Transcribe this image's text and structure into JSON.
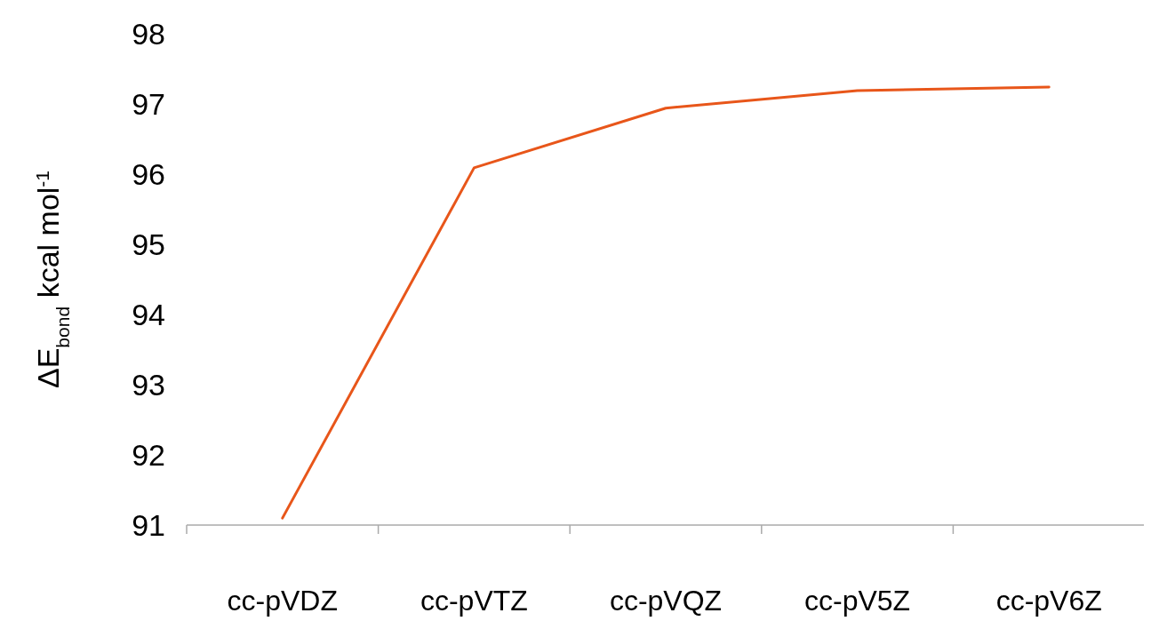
{
  "chart_data": {
    "type": "line",
    "ylabel": "ΔE$_{bond}$ kcal mol$^{-1}$",
    "categories": [
      "cc-pVDZ",
      "cc-pVTZ",
      "cc-pVQZ",
      "cc-pV5Z",
      "cc-pV6Z"
    ],
    "series": [
      {
        "color": "#e8561a",
        "values": [
          91.1,
          96.09,
          96.94,
          97.19,
          97.24
        ]
      }
    ],
    "ylim": [
      91,
      98
    ],
    "yticks": [
      91,
      92,
      93,
      94,
      95,
      96,
      97,
      98
    ],
    "grid": false,
    "marker": "none",
    "line_style": "solid"
  }
}
